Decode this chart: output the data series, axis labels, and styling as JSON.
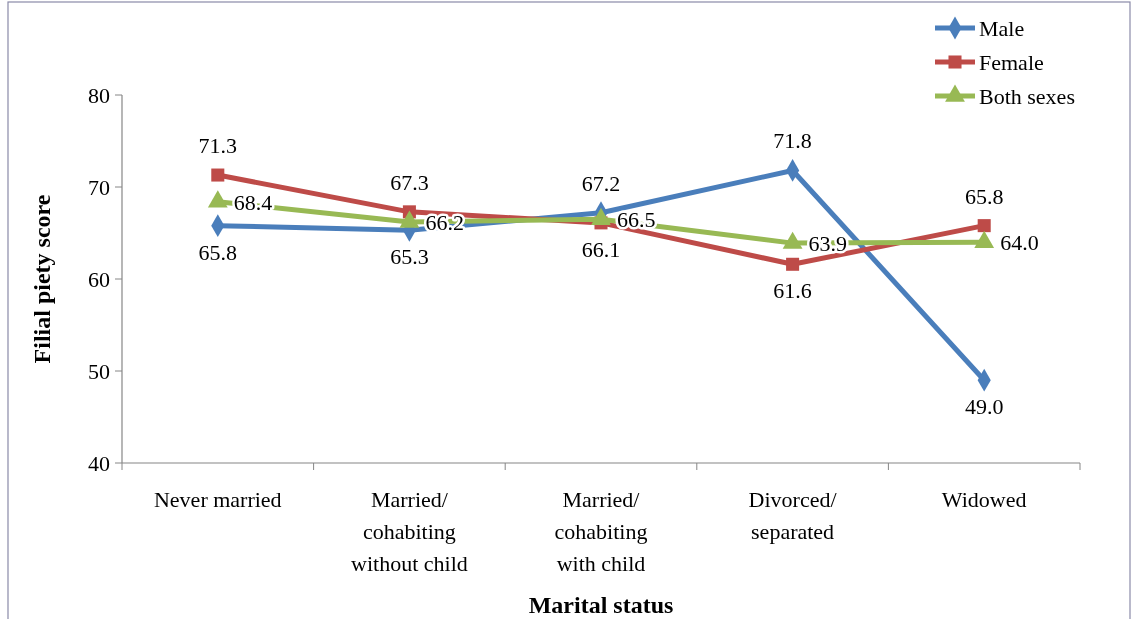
{
  "chart_data": {
    "type": "line",
    "xlabel": "Marital status",
    "ylabel": "Filial piety score",
    "categories": [
      "Never married",
      "Married/\ncohabiting\nwithout child",
      "Married/\ncohabiting\nwith child",
      "Divorced/\nseparated",
      "Widowed"
    ],
    "series": [
      {
        "name": "Male",
        "color": "#4a7ebb",
        "marker": "diamond",
        "values": [
          65.8,
          65.3,
          67.2,
          71.8,
          49.0
        ],
        "value_labels": [
          "65.8",
          "65.3",
          "67.2",
          "71.8",
          "49.0"
        ]
      },
      {
        "name": "Female",
        "color": "#be4b48",
        "marker": "square",
        "values": [
          71.3,
          67.3,
          66.1,
          61.6,
          65.8
        ],
        "value_labels": [
          "71.3",
          "67.3",
          "66.1",
          "61.6",
          "65.8"
        ]
      },
      {
        "name": "Both sexes",
        "color": "#98b954",
        "marker": "triangle",
        "values": [
          68.4,
          66.2,
          66.5,
          63.9,
          64.0
        ],
        "value_labels": [
          "68.4",
          "66.2",
          "66.5",
          "63.9",
          "64.0"
        ]
      }
    ],
    "ylim": [
      40,
      80
    ],
    "yticks": [
      40,
      50,
      60,
      70,
      80
    ],
    "grid": false,
    "legend": "top right"
  }
}
